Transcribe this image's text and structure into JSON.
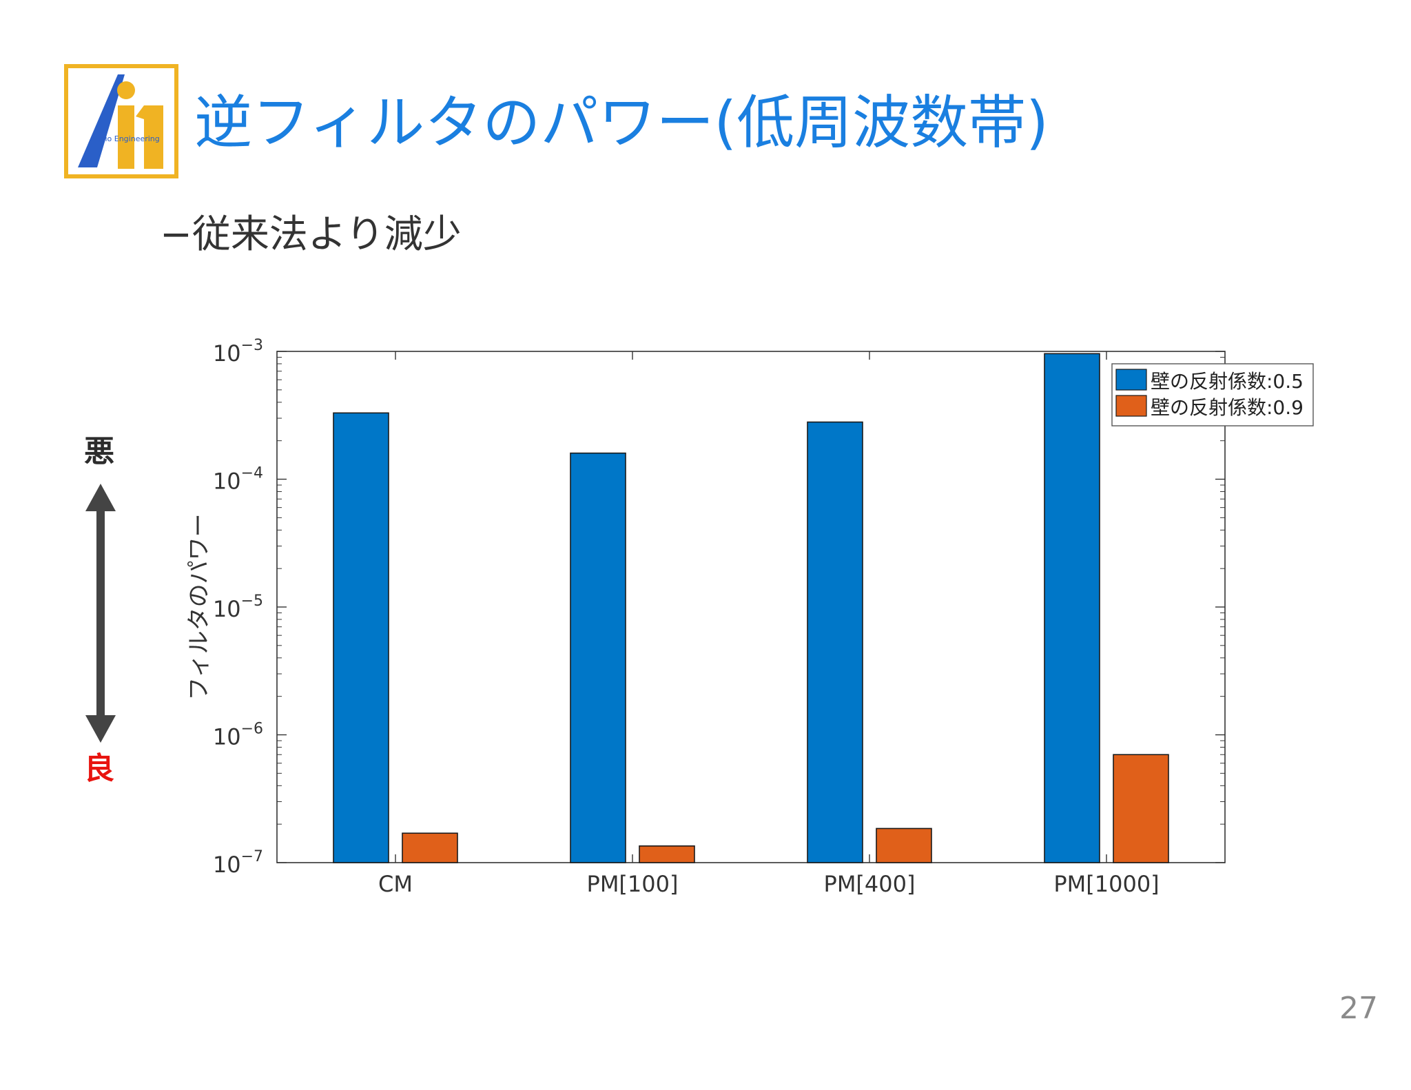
{
  "slide": {
    "title": "逆フィルタのパワー(低周波数帯)",
    "subtitle": "−従来法より減少",
    "page_number": "27",
    "logo_text": "Audio Engineering",
    "logo_mark": "Ai1",
    "colors": {
      "title": "#1a7fe0",
      "logo_gold": "#f0b323",
      "logo_blue": "#2a5fc8"
    }
  },
  "scale": {
    "worse_label": "悪",
    "better_label": "良",
    "arrow_color": "#444444",
    "better_color": "#e8140f"
  },
  "chart_data": {
    "type": "bar",
    "y_scale": "log",
    "ylim": [
      1e-07,
      0.001
    ],
    "ylabel": "フィルタのパワー",
    "xlabel": "",
    "categories": [
      "CM",
      "PM[100]",
      "PM[400]",
      "PM[1000]"
    ],
    "y_ticks": [
      {
        "value": 1e-07,
        "base": "10",
        "exp": "−7"
      },
      {
        "value": 1e-06,
        "base": "10",
        "exp": "−6"
      },
      {
        "value": 1e-05,
        "base": "10",
        "exp": "−5"
      },
      {
        "value": 0.0001,
        "base": "10",
        "exp": "−4"
      },
      {
        "value": 0.001,
        "base": "10",
        "exp": "−3"
      }
    ],
    "series": [
      {
        "name": "壁の反射係数:0.5",
        "color": "#0077c8",
        "values": [
          0.00033,
          0.00016,
          0.00028,
          0.00096
        ]
      },
      {
        "name": "壁の反射係数:0.9",
        "color": "#e0601a",
        "values": [
          1.7e-07,
          1.35e-07,
          1.85e-07,
          7e-07
        ]
      }
    ],
    "legend": "top-right",
    "grid": false
  }
}
